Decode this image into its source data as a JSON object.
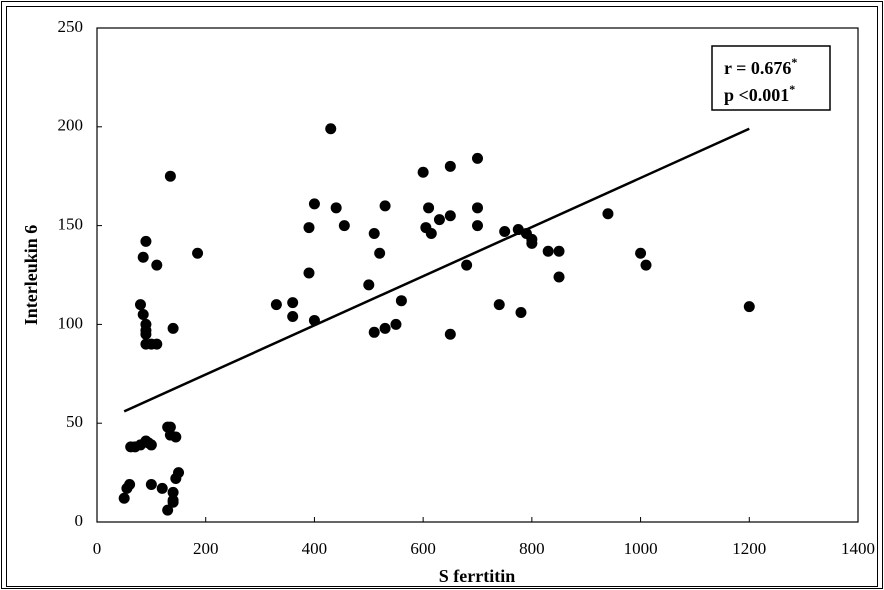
{
  "chart_data": {
    "type": "scatter",
    "x_label": "S ferrtitin",
    "y_label": "Interleukin 6",
    "color": "#000000",
    "x": [
      50,
      55,
      60,
      62,
      70,
      80,
      90,
      95,
      100,
      100,
      120,
      130,
      130,
      135,
      135,
      140,
      140,
      145,
      145,
      150,
      140,
      80,
      85,
      85,
      90,
      90,
      90,
      90,
      90,
      100,
      110,
      110,
      140,
      135,
      185,
      330,
      360,
      360,
      390,
      390,
      400,
      400,
      430,
      440,
      455,
      500,
      510,
      510,
      520,
      530,
      530,
      550,
      560,
      600,
      605,
      610,
      615,
      630,
      650,
      650,
      650,
      680,
      700,
      700,
      700,
      740,
      750,
      775,
      780,
      790,
      800,
      800,
      830,
      850,
      850,
      940,
      1000,
      1010,
      1200
    ],
    "values": [
      12,
      17,
      19,
      38,
      38,
      39,
      41,
      40,
      39,
      19,
      17,
      6,
      48,
      48,
      44,
      15,
      11,
      22,
      43,
      25,
      10,
      110,
      105,
      134,
      142,
      100,
      97,
      95,
      90,
      90,
      90,
      130,
      98,
      175,
      136,
      110,
      111,
      104,
      149,
      126,
      161,
      102,
      199,
      159,
      150,
      120,
      96,
      146,
      136,
      160,
      98,
      100,
      112,
      177,
      149,
      159,
      146,
      153,
      155,
      180,
      95,
      130,
      184,
      159,
      150,
      110,
      147,
      148,
      106,
      146,
      141,
      143,
      137,
      137,
      124,
      156,
      136,
      130,
      109
    ],
    "trendline": {
      "x": [
        50,
        1200
      ],
      "y": [
        56,
        199
      ]
    },
    "xlim": [
      0,
      1400
    ],
    "xticks": [
      0,
      200,
      400,
      600,
      800,
      1000,
      1200,
      1400
    ],
    "ylim": [
      0,
      250
    ],
    "yticks": [
      0,
      50,
      100,
      150,
      200,
      250
    ],
    "annotations": [
      {
        "text": "r = 0.676",
        "sup": "*"
      },
      {
        "text": "p <0.001",
        "sup": "*"
      }
    ]
  }
}
